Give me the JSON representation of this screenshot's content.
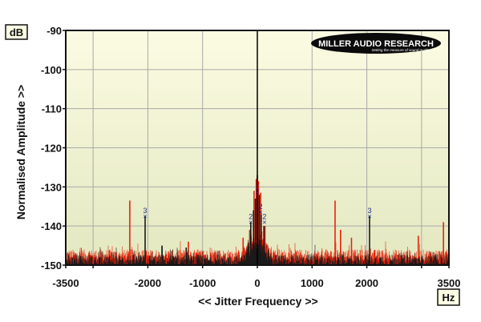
{
  "chart_data": {
    "type": "line",
    "ylabel": "Normalised Amplitude >>",
    "xlabel": "<< Jitter Frequency >>",
    "y_unit": "dB",
    "x_unit": "Hz",
    "xlim": [
      -3500,
      3500
    ],
    "ylim": [
      -150,
      -90
    ],
    "x_ticks": [
      -3500,
      -3000,
      -2000,
      -1000,
      0,
      1000,
      2000,
      3000,
      3500
    ],
    "x_tick_labels": [
      "-3500",
      "",
      "-2000",
      "-1000",
      "0",
      "1000",
      "2000",
      "",
      "3500"
    ],
    "y_ticks": [
      -90,
      -100,
      -110,
      -120,
      -130,
      -140,
      -150
    ],
    "grid": true,
    "background_gradient": [
      "#fbfbe2",
      "#e3e8c0"
    ],
    "logo": {
      "main": "MILLER AUDIO RESEARCH",
      "tagline": "Setting the measure of sound quality"
    },
    "series": [
      {
        "color": "#e8220a",
        "noise_floor": -147.5,
        "peaks": [
          {
            "x": -2330,
            "y": -133.5
          },
          {
            "x": -1260,
            "y": -144
          },
          {
            "x": -260,
            "y": -143
          },
          {
            "x": -140,
            "y": -141
          },
          {
            "x": -60,
            "y": -131
          },
          {
            "x": -20,
            "y": -128
          },
          {
            "x": 20,
            "y": -128.5
          },
          {
            "x": 60,
            "y": -131.5
          },
          {
            "x": 140,
            "y": -140
          },
          {
            "x": 1420,
            "y": -133.5
          },
          {
            "x": 1520,
            "y": -141
          },
          {
            "x": 1720,
            "y": -143
          },
          {
            "x": 2940,
            "y": -142.5
          },
          {
            "x": 3400,
            "y": -139
          }
        ]
      },
      {
        "color": "#1a1a1a",
        "noise_floor": -148.8,
        "peaks": [
          {
            "x": -2050,
            "y": -137.5
          },
          {
            "x": -1740,
            "y": -145
          },
          {
            "x": -1300,
            "y": -145.5
          },
          {
            "x": -120,
            "y": -139
          },
          {
            "x": -70,
            "y": -136
          },
          {
            "x": -35,
            "y": -133
          },
          {
            "x": 0,
            "y": -127
          },
          {
            "x": 35,
            "y": -132
          },
          {
            "x": 70,
            "y": -137
          },
          {
            "x": 120,
            "y": -140
          },
          {
            "x": 2050,
            "y": -137.5
          }
        ]
      }
    ],
    "markers": [
      {
        "label": "3",
        "x": -2050,
        "y": -137.5
      },
      {
        "label": "3",
        "x": 2050,
        "y": -137.5
      },
      {
        "label": "1",
        "x": 0,
        "y": -131.5
      },
      {
        "label": "2",
        "x": -120,
        "y": -139
      },
      {
        "label": "2",
        "x": 130,
        "y": -139
      },
      {
        "label": "2",
        "x": 60,
        "y": -136.5
      }
    ]
  }
}
